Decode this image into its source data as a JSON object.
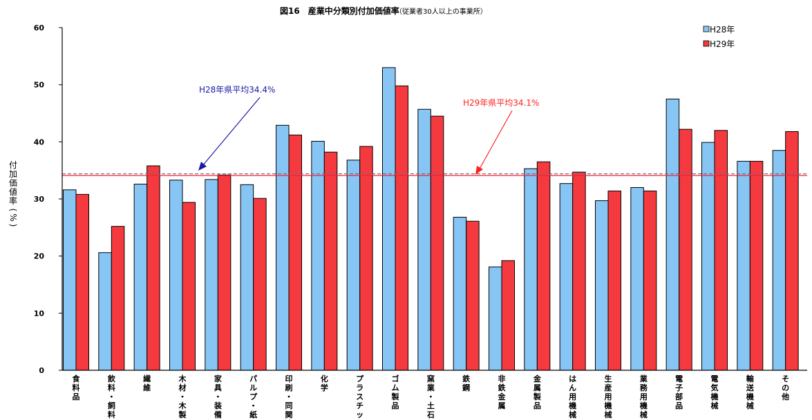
{
  "chart_data": {
    "type": "bar",
    "title": "図16　産業中分類別付加価値率",
    "subtitle": "（従業者30人以上の事業所）",
    "ylabel": "付加価値率(%)",
    "ylim": [
      0,
      60
    ],
    "yticks": [
      0,
      10,
      20,
      30,
      40,
      50,
      60
    ],
    "grid": false,
    "legend_position": "top-right",
    "categories": [
      "食料品",
      "飲料・飼料",
      "繊維",
      "木材・木製品",
      "家具・装備品",
      "パルプ・紙",
      "印刷・同関連",
      "化学",
      "プラスチック",
      "ゴム製品",
      "窯業・土石",
      "鉄鋼",
      "非鉄金属",
      "金属製品",
      "はん用機械",
      "生産用機械",
      "業務用機械",
      "電子部品",
      "電気機械",
      "輸送機械",
      "その他"
    ],
    "series": [
      {
        "name": "H28年",
        "color": "#87C5F5",
        "values": [
          31.6,
          20.6,
          32.6,
          33.3,
          33.4,
          32.5,
          42.9,
          40.1,
          36.8,
          53.0,
          45.7,
          26.8,
          18.1,
          35.3,
          32.7,
          29.7,
          32.0,
          47.5,
          39.9,
          36.6,
          38.5
        ]
      },
      {
        "name": "H29年",
        "color": "#F43A3E",
        "values": [
          30.8,
          25.2,
          35.8,
          29.4,
          34.2,
          30.1,
          41.2,
          38.2,
          39.2,
          49.8,
          44.5,
          26.1,
          19.2,
          36.5,
          34.7,
          31.4,
          31.4,
          42.2,
          42.0,
          36.6,
          41.8
        ]
      }
    ],
    "reference_lines": [
      {
        "label": "H28年県平均34.4%",
        "value": 34.4,
        "color": "#1a1aa6"
      },
      {
        "label": "H29年県平均34.1%",
        "value": 34.1,
        "color": "#ff2020"
      }
    ]
  }
}
